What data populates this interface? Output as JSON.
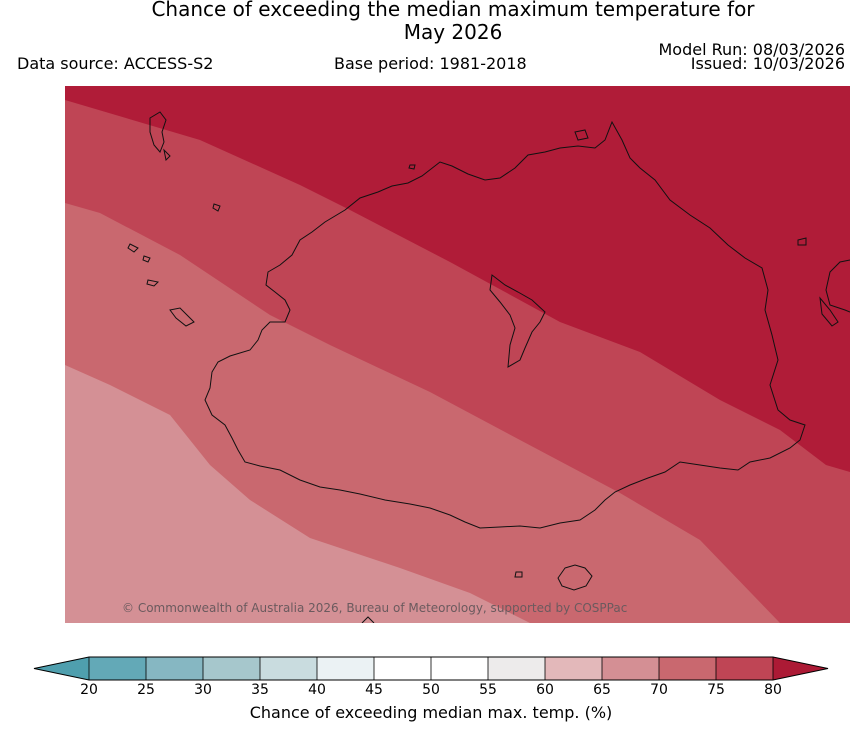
{
  "title": {
    "line1": "Chance of exceeding the median maximum temperature for",
    "line2": "May 2026"
  },
  "data_source": "Data source: ACCESS-S2",
  "base_period": "Base period: 1981-2018",
  "model_run": "Model Run: 08/03/2026",
  "issued": "Issued: 10/03/2026",
  "copyright": "© Commonwealth of Australia 2026, Bureau of Meteorology, supported by COSPPac",
  "map": {
    "bands": [
      {
        "name": "75-80",
        "color": "#b01c38"
      },
      {
        "name": "70-75",
        "color": "#bf4555"
      },
      {
        "name": "65-70",
        "color": "#c9686f"
      },
      {
        "name": "60-65",
        "color": "#d49095"
      }
    ]
  },
  "colorbar": {
    "label": "Chance of exceeding median max. temp. (%)",
    "ticks": [
      "20",
      "25",
      "30",
      "35",
      "40",
      "45",
      "50",
      "55",
      "60",
      "65",
      "70",
      "75",
      "80"
    ],
    "colors": [
      "#63a9b7",
      "#86b7c2",
      "#a6c7cc",
      "#c9dcdf",
      "#ebf2f4",
      "#ffffff",
      "#ffffff",
      "#edebeb",
      "#e3b8ba",
      "#d48f94",
      "#c9686f",
      "#bf4555"
    ],
    "under_color": "#4f9fae",
    "over_color": "#ac1a35"
  }
}
